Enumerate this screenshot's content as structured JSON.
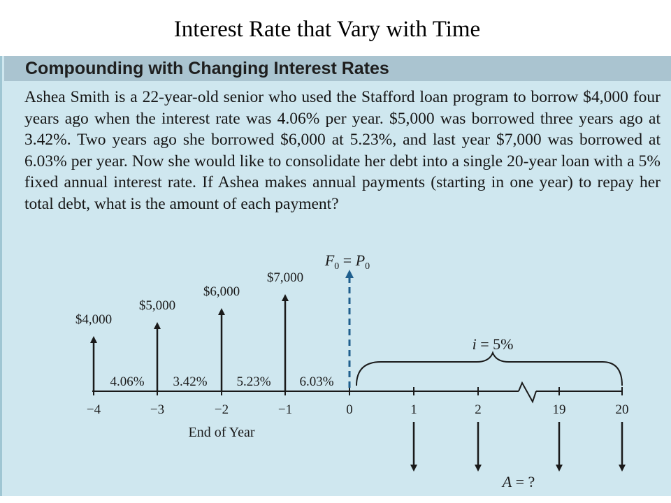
{
  "slide": {
    "title": "Interest Rate that Vary with Time"
  },
  "box": {
    "title": "Compounding with Changing Interest Rates",
    "problem": "Ashea Smith is a 22-year-old senior who used the Stafford loan program to borrow $4,000 four years ago when the interest rate was 4.06% per year. $5,000 was borrowed three years ago at 3.42%. Two years ago she borrowed $6,000 at 5.23%, and last year $7,000 was borrowed at 6.03% per year. Now she would like to consolidate her debt into a single 20-year loan with a 5% fixed annual interest rate. If Ashea makes annual payments (starting in one year) to repay her total debt, what is the amount of each payment?"
  },
  "diagram": {
    "axis_label": "End of Year",
    "ticks": [
      "−4",
      "−3",
      "−2",
      "−1",
      "0",
      "1",
      "2",
      "19",
      "20"
    ],
    "borrowings": [
      {
        "year": -4,
        "amount": "$4,000",
        "value": 4000
      },
      {
        "year": -3,
        "amount": "$5,000",
        "value": 5000
      },
      {
        "year": -2,
        "amount": "$6,000",
        "value": 6000
      },
      {
        "year": -1,
        "amount": "$7,000",
        "value": 7000
      }
    ],
    "rates": [
      "4.06%",
      "3.42%",
      "5.23%",
      "6.03%"
    ],
    "future_value_label": "F₀ = P₀",
    "future_value_parts": {
      "F": "F",
      "sub": "0",
      "eq": " = ",
      "P": "P"
    },
    "interest_label": "i = 5%",
    "interest_parts": {
      "i": "i",
      "rest": " = 5%"
    },
    "payment_label": "A = ?",
    "payment_parts": {
      "A": "A",
      "rest": " = ?"
    },
    "payment_years": [
      1,
      2,
      19,
      20
    ]
  }
}
